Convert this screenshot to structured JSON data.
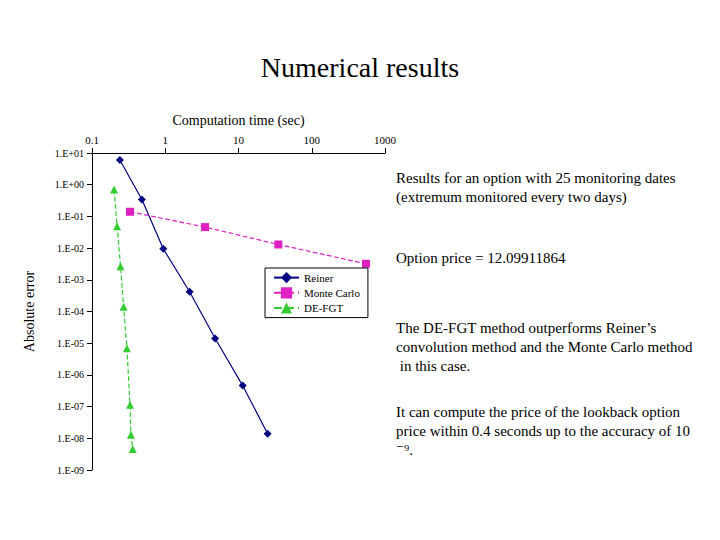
{
  "chart_data": {
    "type": "line",
    "title": "Numerical results",
    "xlabel": "Computation time (sec)",
    "ylabel": "Absolute error",
    "log": true,
    "grid": false,
    "legend": "right",
    "xlim": [
      0.1,
      1000
    ],
    "xticks": [
      0.1,
      1,
      10,
      100,
      1000
    ],
    "ylim": [
      1e-09,
      10
    ],
    "yticks": [
      {
        "value": 10,
        "label": "1.E+01"
      },
      {
        "value": 1,
        "label": "1.E+00"
      },
      {
        "value": 0.1,
        "label": "1.E-01"
      },
      {
        "value": 0.01,
        "label": "1.E-02"
      },
      {
        "value": 0.001,
        "label": "1.E-03"
      },
      {
        "value": 0.0001,
        "label": "1.E-04"
      },
      {
        "value": 1e-05,
        "label": "1.E-05"
      },
      {
        "value": 1e-06,
        "label": "1.E-06"
      },
      {
        "value": 1e-07,
        "label": "1.E-07"
      },
      {
        "value": 1e-08,
        "label": "1.E-08"
      },
      {
        "value": 1e-09,
        "label": "1.E-09"
      }
    ],
    "series": [
      {
        "name": "Reiner",
        "color": "#000080",
        "marker": "diamond",
        "line_style": "solid",
        "x": [
          0.24,
          0.48,
          0.94,
          2.15,
          4.8,
          11.4,
          25
        ],
        "values": [
          6.0,
          0.34,
          0.0095,
          0.00042,
          1.4e-05,
          4.6e-07,
          1.4e-08
        ]
      },
      {
        "name": "Monte Carlo",
        "color": "#e020c0",
        "marker": "square",
        "line_style": "dashed",
        "x": [
          0.33,
          3.5,
          35,
          550
        ],
        "values": [
          0.14,
          0.046,
          0.013,
          0.0032
        ]
      },
      {
        "name": "DE-FGT",
        "color": "#33cc33",
        "marker": "triangle",
        "line_style": "dashed",
        "x": [
          0.2,
          0.22,
          0.245,
          0.27,
          0.3,
          0.33,
          0.34,
          0.36
        ],
        "values": [
          0.7,
          0.049,
          0.0027,
          0.00014,
          6.9e-06,
          1.15e-07,
          1.3e-08,
          4.6e-09
        ]
      }
    ],
    "annotations": [
      "Results for an option with 25 monitoring dates (extremum monitored every two days)",
      "Option price = 12.09911864",
      "The DE-FGT method outperforms Reiner’s convolution method and the Monte Carlo method in this case.",
      "It can compute the price of the lookback option price within 0.4 seconds up to the accuracy of 10⁻⁹."
    ]
  }
}
